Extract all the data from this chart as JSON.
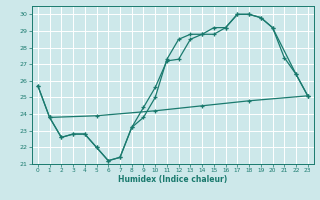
{
  "xlabel": "Humidex (Indice chaleur)",
  "background_color": "#cde8ea",
  "grid_color": "#ffffff",
  "line_color": "#1a7a6e",
  "xlim": [
    -0.5,
    23.5
  ],
  "ylim": [
    21.0,
    30.5
  ],
  "yticks": [
    21,
    22,
    23,
    24,
    25,
    26,
    27,
    28,
    29,
    30
  ],
  "xticks": [
    0,
    1,
    2,
    3,
    4,
    5,
    6,
    7,
    8,
    9,
    10,
    11,
    12,
    13,
    14,
    15,
    16,
    17,
    18,
    19,
    20,
    21,
    22,
    23
  ],
  "line1_x": [
    0,
    1,
    2,
    3,
    4,
    5,
    6,
    7,
    8,
    9,
    10,
    11,
    12,
    13,
    14,
    15,
    16,
    17,
    18,
    19,
    20,
    21,
    22,
    23
  ],
  "line1_y": [
    25.7,
    23.8,
    22.6,
    22.8,
    22.8,
    22.0,
    21.2,
    21.4,
    23.2,
    23.8,
    25.0,
    27.3,
    28.5,
    28.8,
    28.8,
    28.8,
    29.2,
    30.0,
    30.0,
    29.8,
    29.2,
    27.4,
    26.4,
    25.1
  ],
  "line2_x": [
    0,
    1,
    2,
    3,
    4,
    5,
    6,
    7,
    8,
    9,
    10,
    11,
    12,
    13,
    14,
    15,
    16,
    17,
    18,
    19,
    20,
    22,
    23
  ],
  "line2_y": [
    25.7,
    23.8,
    22.6,
    22.8,
    22.8,
    22.0,
    21.2,
    21.4,
    23.2,
    24.4,
    25.6,
    27.2,
    27.3,
    28.5,
    28.8,
    29.2,
    29.2,
    30.0,
    30.0,
    29.8,
    29.2,
    26.4,
    25.1
  ],
  "line3_x": [
    1,
    5,
    10,
    14,
    18,
    23
  ],
  "line3_y": [
    23.8,
    23.9,
    24.2,
    24.5,
    24.8,
    25.1
  ]
}
